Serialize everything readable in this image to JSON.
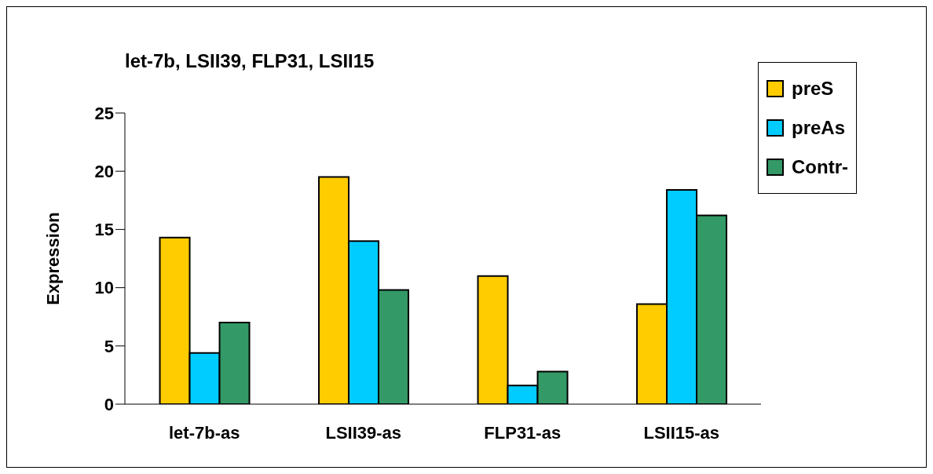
{
  "chart_data": {
    "type": "bar",
    "title": "let-7b, LSII39, FLP31, LSII15",
    "ylabel": "Expression",
    "categories": [
      "let-7b-as",
      "LSII39-as",
      "FLP31-as",
      "LSII15-as"
    ],
    "series": [
      {
        "name": "preS",
        "color": "#ffcc00",
        "values": [
          14.3,
          19.5,
          11.0,
          8.6
        ]
      },
      {
        "name": "preAs",
        "color": "#00ccff",
        "values": [
          4.4,
          14.0,
          1.6,
          18.4
        ]
      },
      {
        "name": "Contr-",
        "color": "#339966",
        "values": [
          7.0,
          9.8,
          2.8,
          16.2
        ]
      }
    ],
    "ylim": [
      0,
      25
    ],
    "yticks": [
      0,
      5,
      10,
      15,
      20,
      25
    ],
    "grid": false,
    "legend": "top right"
  }
}
